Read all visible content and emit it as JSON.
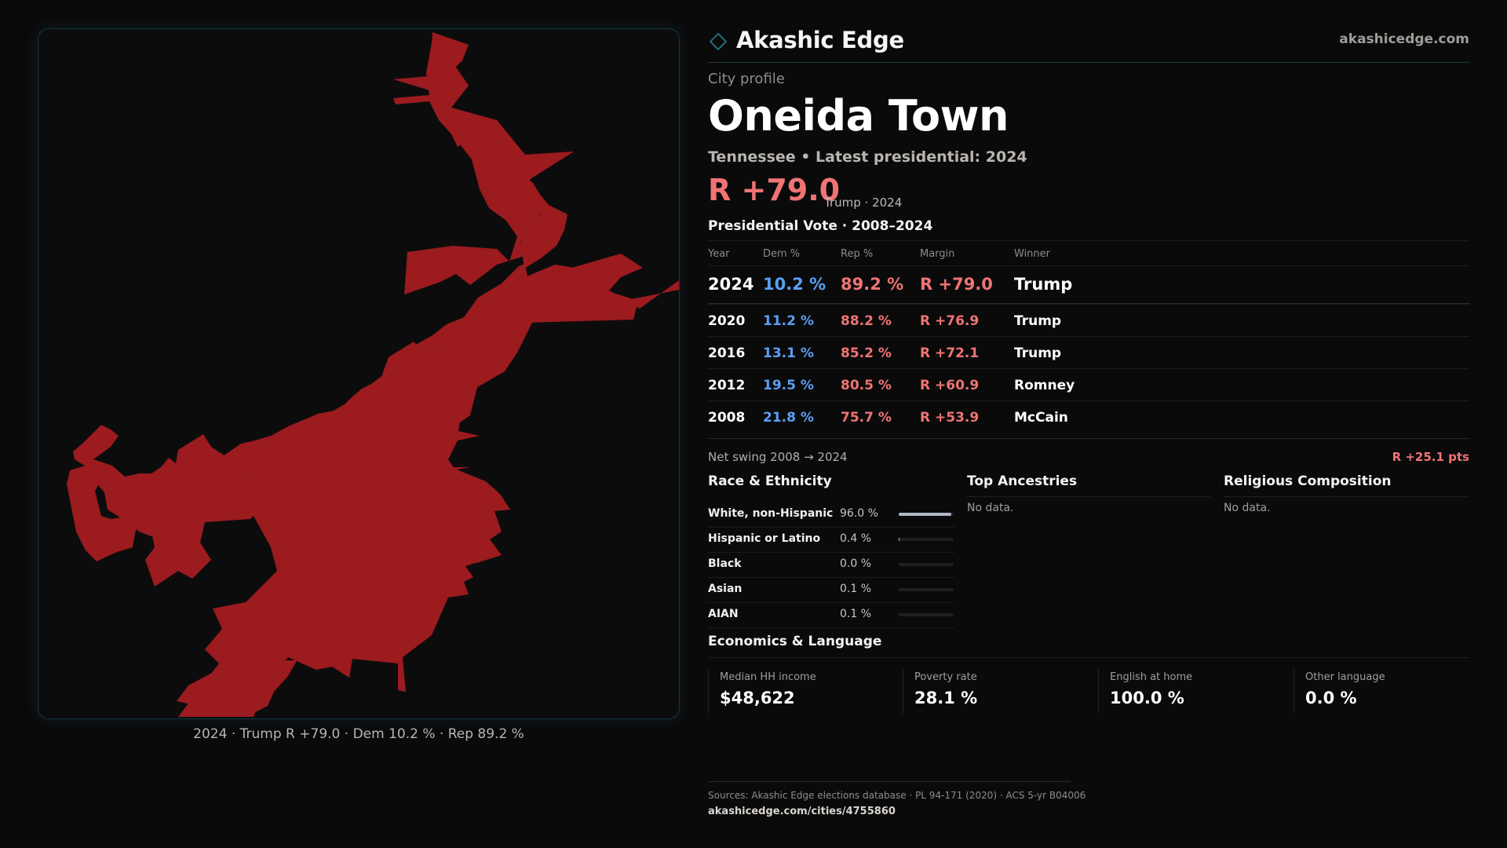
{
  "brand": "Akashic Edge",
  "site": "akashicedge.com",
  "colors": {
    "rep": "#f07474",
    "dem": "#5aa0f2",
    "map_fill": "#9b1b1e",
    "accent": "#1f6e7a"
  },
  "profile": {
    "kicker": "City profile",
    "name": "Oneida Town",
    "subline": "Tennessee • Latest presidential: 2024",
    "margin": "R +79.0",
    "margin_note": "Trump · 2024"
  },
  "map": {
    "caption": "2024 · Trump R +79.0 · Dem 10.2 % · Rep 89.2 %"
  },
  "vote": {
    "heading": "Presidential Vote · 2008–2024",
    "columns": [
      "Year",
      "Dem %",
      "Rep %",
      "Margin",
      "Winner"
    ],
    "rows": [
      {
        "year": "2024",
        "dem": "10.2 %",
        "rep": "89.2 %",
        "margin": "R +79.0",
        "winner": "Trump"
      },
      {
        "year": "2020",
        "dem": "11.2 %",
        "rep": "88.2 %",
        "margin": "R +76.9",
        "winner": "Trump"
      },
      {
        "year": "2016",
        "dem": "13.1 %",
        "rep": "85.2 %",
        "margin": "R +72.1",
        "winner": "Trump"
      },
      {
        "year": "2012",
        "dem": "19.5 %",
        "rep": "80.5 %",
        "margin": "R +60.9",
        "winner": "Romney"
      },
      {
        "year": "2008",
        "dem": "21.8 %",
        "rep": "75.7 %",
        "margin": "R +53.9",
        "winner": "McCain"
      }
    ],
    "swing_label": "Net swing 2008 → 2024",
    "swing_value": "R +25.1 pts"
  },
  "race": {
    "heading": "Race & Ethnicity",
    "rows": [
      {
        "label": "White, non-Hispanic",
        "value": "96.0 %",
        "share": 0.96
      },
      {
        "label": "Hispanic or Latino",
        "value": "0.4 %",
        "share": 0.004
      },
      {
        "label": "Black",
        "value": "0.0 %",
        "share": 0.0
      },
      {
        "label": "Asian",
        "value": "0.1 %",
        "share": 0.001
      },
      {
        "label": "AIAN",
        "value": "0.1 %",
        "share": 0.001
      }
    ]
  },
  "ancestries": {
    "heading": "Top Ancestries",
    "empty": "No data."
  },
  "religion": {
    "heading": "Religious Composition",
    "empty": "No data."
  },
  "economics": {
    "heading": "Economics & Language",
    "items": [
      {
        "label": "Median HH income",
        "value": "$48,622"
      },
      {
        "label": "Poverty rate",
        "value": "28.1 %"
      },
      {
        "label": "English at home",
        "value": "100.0 %"
      },
      {
        "label": "Other language",
        "value": "0.0 %"
      }
    ]
  },
  "footer": {
    "sources": "Sources: Akashic Edge elections database · PL 94-171 (2020) · ACS 5-yr B04006",
    "url": "akashicedge.com/cities/4755860"
  }
}
